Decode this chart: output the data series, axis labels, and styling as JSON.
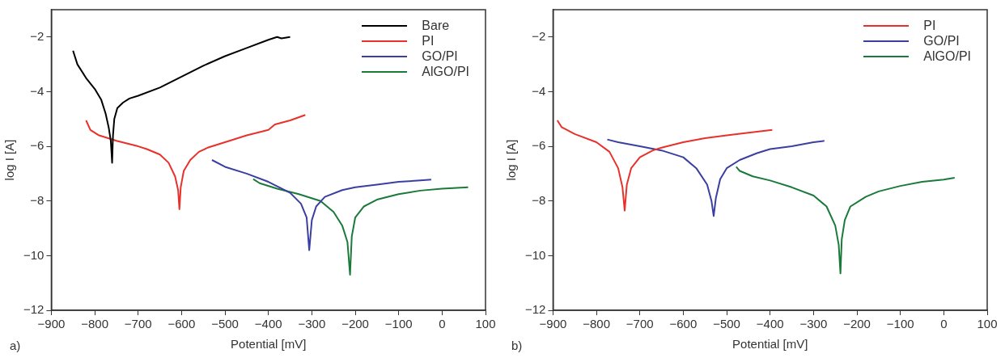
{
  "chart_data": [
    {
      "type": "line",
      "xlabel": "Potential [mV]",
      "ylabel": "log I [A]",
      "annotations": [
        "a)"
      ],
      "xlim": [
        -900,
        100
      ],
      "ylim": [
        -12,
        -1
      ],
      "xticks": [
        -900,
        -800,
        -700,
        -600,
        -500,
        -400,
        -300,
        -200,
        -100,
        0,
        100
      ],
      "yticks": [
        -12,
        -10,
        -8,
        -6,
        -4,
        -2
      ],
      "grid": false,
      "legend": "top right",
      "line_style": "solid",
      "series": [
        {
          "name": "Bare",
          "color": "#000000",
          "x": [
            -850,
            -840,
            -820,
            -800,
            -785,
            -775,
            -768,
            -763,
            -760,
            -758,
            -755,
            -748,
            -735,
            -720,
            -700,
            -650,
            -600,
            -550,
            -500,
            -450,
            -400,
            -380,
            -370,
            -350
          ],
          "values": [
            -2.5,
            -3.0,
            -3.5,
            -3.9,
            -4.3,
            -4.8,
            -5.3,
            -5.8,
            -6.6,
            -5.6,
            -5.0,
            -4.6,
            -4.4,
            -4.25,
            -4.15,
            -3.85,
            -3.45,
            -3.05,
            -2.7,
            -2.4,
            -2.1,
            -2.0,
            -2.05,
            -2.0
          ]
        },
        {
          "name": "PI",
          "color": "#e8312a",
          "x": [
            -820,
            -810,
            -790,
            -750,
            -700,
            -680,
            -650,
            -630,
            -615,
            -608,
            -605,
            -602,
            -595,
            -580,
            -560,
            -540,
            -500,
            -450,
            -400,
            -385,
            -350,
            -315
          ],
          "values": [
            -5.05,
            -5.4,
            -5.6,
            -5.8,
            -6.0,
            -6.1,
            -6.3,
            -6.6,
            -7.1,
            -7.6,
            -8.3,
            -7.5,
            -6.9,
            -6.5,
            -6.2,
            -6.05,
            -5.85,
            -5.6,
            -5.4,
            -5.2,
            -5.05,
            -4.85
          ]
        },
        {
          "name": "GO/PI",
          "color": "#3a3fa0",
          "x": [
            -530,
            -500,
            -450,
            -400,
            -350,
            -325,
            -312,
            -306,
            -300,
            -290,
            -270,
            -230,
            -200,
            -150,
            -100,
            -50,
            -25
          ],
          "values": [
            -6.5,
            -6.75,
            -7.0,
            -7.3,
            -7.7,
            -8.1,
            -8.6,
            -9.8,
            -8.7,
            -8.2,
            -7.85,
            -7.6,
            -7.5,
            -7.4,
            -7.3,
            -7.25,
            -7.22
          ]
        },
        {
          "name": "AlGO/PI",
          "color": "#1a7a3a",
          "x": [
            -435,
            -420,
            -380,
            -330,
            -280,
            -250,
            -230,
            -218,
            -212,
            -208,
            -200,
            -180,
            -150,
            -100,
            -50,
            0,
            60
          ],
          "values": [
            -7.2,
            -7.35,
            -7.55,
            -7.75,
            -8.0,
            -8.4,
            -8.9,
            -9.5,
            -10.7,
            -9.3,
            -8.6,
            -8.2,
            -7.95,
            -7.75,
            -7.62,
            -7.55,
            -7.5
          ]
        }
      ]
    },
    {
      "type": "line",
      "xlabel": "Potential [mV]",
      "ylabel": "log I [A]",
      "annotations": [
        "b)"
      ],
      "xlim": [
        -900,
        100
      ],
      "ylim": [
        -12,
        -1
      ],
      "xticks": [
        -900,
        -800,
        -700,
        -600,
        -500,
        -400,
        -300,
        -200,
        -100,
        0,
        100
      ],
      "yticks": [
        -12,
        -10,
        -8,
        -6,
        -4,
        -2
      ],
      "grid": false,
      "legend": "top right",
      "line_style": "solid",
      "series": [
        {
          "name": "PI",
          "color": "#e8312a",
          "x": [
            -890,
            -880,
            -850,
            -800,
            -770,
            -750,
            -740,
            -735,
            -730,
            -720,
            -700,
            -670,
            -650,
            -600,
            -550,
            -500,
            -450,
            -395
          ],
          "values": [
            -5.05,
            -5.3,
            -5.55,
            -5.85,
            -6.2,
            -6.8,
            -7.5,
            -8.35,
            -7.4,
            -6.8,
            -6.4,
            -6.15,
            -6.05,
            -5.85,
            -5.7,
            -5.6,
            -5.5,
            -5.4
          ]
        },
        {
          "name": "GO/PI",
          "color": "#3a3fa0",
          "x": [
            -775,
            -750,
            -700,
            -650,
            -600,
            -570,
            -545,
            -535,
            -530,
            -525,
            -515,
            -500,
            -470,
            -430,
            -400,
            -350,
            -300,
            -275
          ],
          "values": [
            -5.75,
            -5.85,
            -6.0,
            -6.15,
            -6.4,
            -6.8,
            -7.4,
            -8.0,
            -8.55,
            -7.9,
            -7.2,
            -6.8,
            -6.5,
            -6.25,
            -6.1,
            -6.0,
            -5.85,
            -5.8
          ]
        },
        {
          "name": "AlGO/PI",
          "color": "#1a7a3a",
          "x": [
            -478,
            -470,
            -440,
            -400,
            -350,
            -300,
            -270,
            -250,
            -242,
            -238,
            -235,
            -228,
            -215,
            -180,
            -150,
            -100,
            -50,
            0,
            25
          ],
          "values": [
            -6.75,
            -6.9,
            -7.1,
            -7.25,
            -7.5,
            -7.8,
            -8.2,
            -8.9,
            -9.6,
            -10.65,
            -9.4,
            -8.7,
            -8.2,
            -7.85,
            -7.65,
            -7.45,
            -7.3,
            -7.22,
            -7.15
          ]
        }
      ]
    }
  ]
}
